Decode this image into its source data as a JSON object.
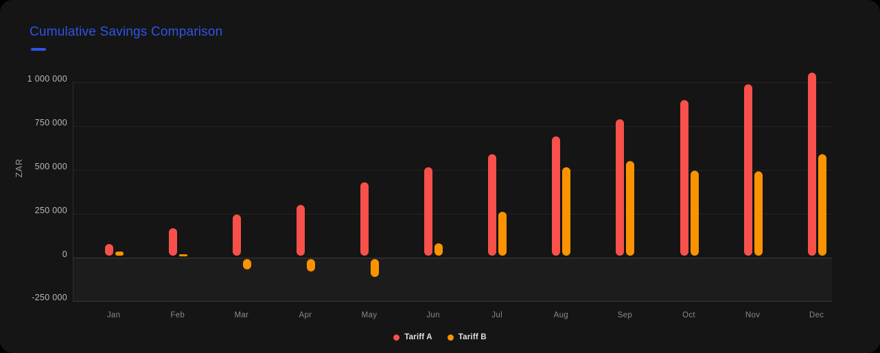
{
  "card": {
    "title": "Cumulative Savings Comparison"
  },
  "colors": {
    "accent_blue": "#2F55E6",
    "card_background": "#151515",
    "negative_band": "#1c1c1d",
    "tariff_a_red": "#F8504A",
    "tariff_b_orange": "#FB9301"
  },
  "chart_data": {
    "type": "bar",
    "title": "Cumulative Savings Comparison",
    "categories": [
      "Jan",
      "Feb",
      "Mar",
      "Apr",
      "May",
      "Jun",
      "Jul",
      "Aug",
      "Sep",
      "Oct",
      "Nov",
      "Dec"
    ],
    "series": [
      {
        "name": "Tariff A",
        "color": "#F8504A",
        "values": [
          75000,
          165000,
          245000,
          300000,
          430000,
          515000,
          590000,
          690000,
          790000,
          900000,
          990000,
          1055000
        ]
      },
      {
        "name": "Tariff B",
        "color": "#FB9301",
        "values": [
          35000,
          10000,
          -70000,
          -80000,
          -110000,
          80000,
          260000,
          515000,
          550000,
          495000,
          490000,
          590000
        ]
      }
    ],
    "xlabel": "",
    "ylabel": "ZAR",
    "ylim": [
      -250000,
      1000000
    ],
    "yticks": [
      1000000,
      750000,
      500000,
      250000,
      0,
      -250000
    ],
    "ytick_labels": [
      "1 000 000",
      "750 000",
      "500 000",
      "250 000",
      "0",
      "-250 000"
    ],
    "grid": true,
    "legend_position": "bottom-center"
  }
}
